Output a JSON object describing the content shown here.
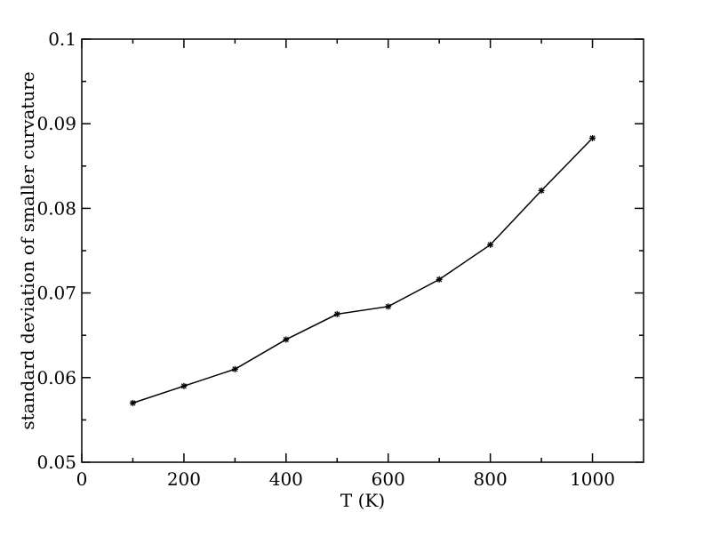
{
  "chart_data": {
    "type": "line",
    "title": "",
    "xlabel": "T (K)",
    "ylabel": "standard deviation of smaller curvature",
    "xlim": [
      0,
      1100
    ],
    "ylim": [
      0.05,
      0.1
    ],
    "x_ticks_major": [
      0,
      200,
      400,
      600,
      800,
      1000
    ],
    "x_tick_labels": [
      "0",
      "200",
      "400",
      "600",
      "800",
      "1000"
    ],
    "x_ticks_minor": [
      100,
      300,
      500,
      700,
      900
    ],
    "y_ticks_major": [
      0.05,
      0.06,
      0.07,
      0.08,
      0.09,
      0.1
    ],
    "y_tick_labels": [
      "0.05",
      "0.06",
      "0.07",
      "0.08",
      "0.09",
      "0.1"
    ],
    "y_ticks_minor": [
      0.055,
      0.065,
      0.075,
      0.085,
      0.095
    ],
    "grid": false,
    "series": [
      {
        "x": [
          100,
          200,
          300,
          400,
          500,
          600,
          700,
          800,
          900,
          1000
        ],
        "y": [
          0.057,
          0.059,
          0.061,
          0.0645,
          0.0675,
          0.0684,
          0.0716,
          0.0757,
          0.0821,
          0.0883
        ],
        "color": "#000000",
        "marker": "star"
      }
    ]
  }
}
